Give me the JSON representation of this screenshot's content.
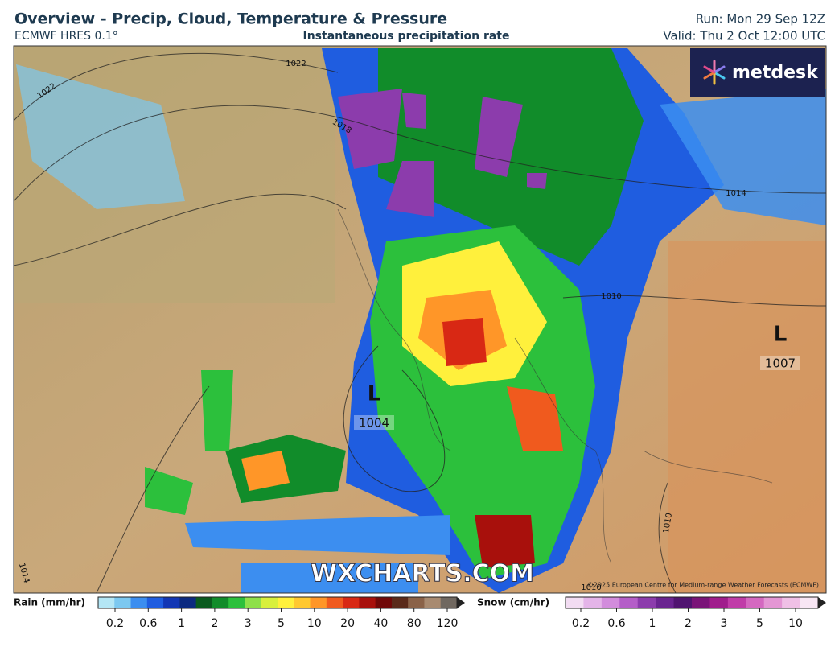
{
  "header": {
    "title": "Overview - Precip, Cloud, Temperature & Pressure",
    "model": "ECMWF HRES 0.1°",
    "subtitle": "Instantaneous precipitation rate",
    "run": "Run: Mon 29 Sep 12Z",
    "valid": "Valid: Thu 2 Oct 12:00 UTC"
  },
  "map": {
    "logo": "metdesk",
    "watermark": "WXCHARTS.COM",
    "copyright": "©2025 European Centre for Medium-range Weather Forecasts (ECMWF)",
    "lows": [
      {
        "symbol": "L",
        "pressure": "1004"
      },
      {
        "symbol": "L",
        "pressure": "1007"
      }
    ],
    "isobar_labels": [
      "1022",
      "1022",
      "1018",
      "1014",
      "1010",
      "1010",
      "1010",
      "1014"
    ]
  },
  "legend": {
    "rain": {
      "label": "Rain (mm/hr)",
      "ticks": [
        0.2,
        0.6,
        1,
        2,
        3,
        5,
        10,
        20,
        40,
        80,
        120
      ],
      "colors": [
        "#b4e6f5",
        "#7cc8f0",
        "#3c8ef0",
        "#1f5de0",
        "#1236b4",
        "#0c2a80",
        "#0a5a1e",
        "#118c2a",
        "#2cc03c",
        "#8ee04a",
        "#d8f03c",
        "#fff03c",
        "#ffc830",
        "#ff9628",
        "#f05a1e",
        "#d82814",
        "#a8100c",
        "#700808",
        "#5a2a1a",
        "#8a6248",
        "#a88a70",
        "#706860"
      ]
    },
    "snow": {
      "label": "Snow (cm/hr)",
      "ticks": [
        0.2,
        0.6,
        1,
        2,
        3,
        5,
        10
      ],
      "colors": [
        "#f2dcf2",
        "#e4b4e8",
        "#d28cdc",
        "#b45ec8",
        "#8c3cac",
        "#6a2490",
        "#501470",
        "#7a1478",
        "#a01c8c",
        "#c03ca8",
        "#d468c0",
        "#e496d4",
        "#f0c0e6",
        "#f8e6f4"
      ]
    }
  }
}
